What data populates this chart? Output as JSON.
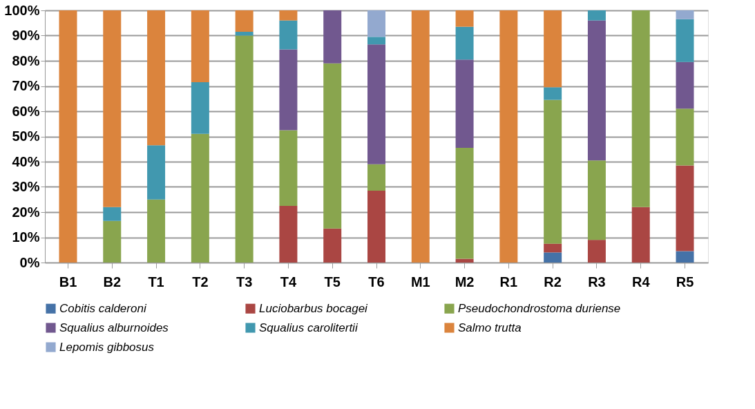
{
  "chart_data": {
    "type": "bar",
    "stacked": true,
    "categories": [
      "B1",
      "B2",
      "T1",
      "T2",
      "T3",
      "T4",
      "T5",
      "T6",
      "M1",
      "M2",
      "R1",
      "R2",
      "R3",
      "R4",
      "R5"
    ],
    "series": [
      {
        "name": "Cobitis calderoni",
        "color": "#4572a7",
        "values": [
          null,
          null,
          null,
          null,
          null,
          null,
          null,
          null,
          null,
          null,
          null,
          4,
          null,
          null,
          4.5
        ]
      },
      {
        "name": "Luciobarbus bocagei",
        "color": "#aa4643",
        "values": [
          null,
          null,
          null,
          null,
          null,
          22.5,
          13.5,
          28.5,
          null,
          1.5,
          null,
          3.5,
          9,
          22,
          34
        ]
      },
      {
        "name": "Pseudochondrostoma duriense",
        "color": "#89a54e",
        "values": [
          null,
          16.5,
          25,
          51,
          90,
          30,
          65.5,
          10.5,
          null,
          44,
          null,
          57,
          31.5,
          78,
          22.5
        ]
      },
      {
        "name": "Squalius alburnoides",
        "color": "#71588f",
        "values": [
          null,
          null,
          null,
          null,
          null,
          32,
          21,
          47.5,
          null,
          35,
          null,
          null,
          55.5,
          null,
          18.5
        ]
      },
      {
        "name": "Squalius carolitertii",
        "color": "#4198af",
        "values": [
          null,
          5.5,
          21.5,
          20.5,
          1.5,
          11.5,
          null,
          3,
          null,
          13,
          null,
          5,
          4,
          null,
          17
        ]
      },
      {
        "name": "Salmo trutta",
        "color": "#db843d",
        "values": [
          100,
          78,
          53.5,
          28.5,
          8.5,
          4,
          null,
          null,
          100,
          6.5,
          100,
          30.5,
          null,
          null,
          null
        ]
      },
      {
        "name": "Lepomis gibbosus",
        "color": "#93a9cf",
        "values": [
          null,
          null,
          null,
          null,
          null,
          null,
          null,
          10.5,
          null,
          null,
          null,
          null,
          null,
          null,
          3.5
        ]
      }
    ],
    "ylim": [
      0,
      100
    ],
    "yticks": [
      {
        "value": 0,
        "label": "0%"
      },
      {
        "value": 10,
        "label": "10%"
      },
      {
        "value": 20,
        "label": "20%"
      },
      {
        "value": 30,
        "label": "30%"
      },
      {
        "value": 40,
        "label": "40%"
      },
      {
        "value": 50,
        "label": "50%"
      },
      {
        "value": 60,
        "label": "60%"
      },
      {
        "value": 70,
        "label": "70%"
      },
      {
        "value": 80,
        "label": "80%"
      },
      {
        "value": 90,
        "label": "90%"
      },
      {
        "value": 100,
        "label": "100%"
      }
    ],
    "grid": "y",
    "legend": "bottom"
  }
}
